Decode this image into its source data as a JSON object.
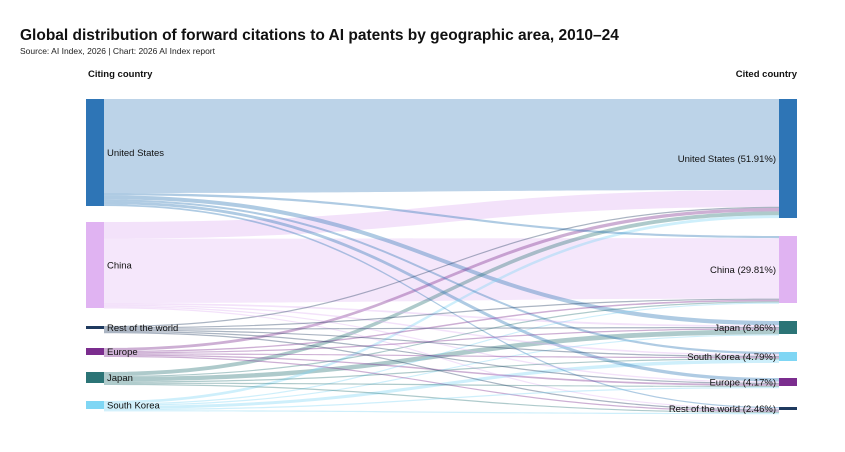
{
  "title": "Global distribution of forward citations to AI patents by geographic area, 2010–24",
  "source": "Source: AI Index, 2026 | Chart: 2026 AI Index report",
  "chart_data": {
    "type": "sankey",
    "left_header": "Citing country",
    "right_header": "Cited country",
    "colors": {
      "United States": "#2e75b6",
      "China": "#e0b3f2",
      "Rest of the world": "#1f3a5f",
      "Europe": "#7b2d8e",
      "Japan": "#2b7476",
      "South Korea": "#7fd6f4"
    },
    "sources": [
      {
        "name": "United States",
        "label": "United States",
        "share": 37.0
      },
      {
        "name": "China",
        "label": "China",
        "share": 31.0
      },
      {
        "name": "Rest of the world",
        "label": "Rest of the world",
        "share": 1.0
      },
      {
        "name": "Europe",
        "label": "Europe",
        "share": 3.0
      },
      {
        "name": "Japan",
        "label": "Japan",
        "share": 4.0
      },
      {
        "name": "South Korea",
        "label": "South Korea",
        "share": 3.0
      }
    ],
    "targets": [
      {
        "name": "United States",
        "label": "United States (51.91%)",
        "share": 51.91
      },
      {
        "name": "China",
        "label": "China (29.81%)",
        "share": 29.81
      },
      {
        "name": "Japan",
        "label": "Japan (6.86%)",
        "share": 6.86
      },
      {
        "name": "South Korea",
        "label": "South Korea (4.79%)",
        "share": 4.79
      },
      {
        "name": "Europe",
        "label": "Europe (4.17%)",
        "share": 4.17
      },
      {
        "name": "Rest of the world",
        "label": "Rest of the world (2.46%)",
        "share": 2.46
      }
    ],
    "flows": [
      {
        "from": "United States",
        "to": "United States",
        "value": 32.5
      },
      {
        "from": "United States",
        "to": "China",
        "value": 0.8
      },
      {
        "from": "United States",
        "to": "Japan",
        "value": 1.4
      },
      {
        "from": "United States",
        "to": "South Korea",
        "value": 0.7
      },
      {
        "from": "United States",
        "to": "Europe",
        "value": 1.0
      },
      {
        "from": "United States",
        "to": "Rest of the world",
        "value": 0.6
      },
      {
        "from": "China",
        "to": "United States",
        "value": 6.0
      },
      {
        "from": "China",
        "to": "China",
        "value": 23.2
      },
      {
        "from": "China",
        "to": "Japan",
        "value": 0.6
      },
      {
        "from": "China",
        "to": "South Korea",
        "value": 0.5
      },
      {
        "from": "China",
        "to": "Europe",
        "value": 0.4
      },
      {
        "from": "China",
        "to": "Rest of the world",
        "value": 0.3
      },
      {
        "from": "Rest of the world",
        "to": "United States",
        "value": 0.4
      },
      {
        "from": "Rest of the world",
        "to": "China",
        "value": 0.3
      },
      {
        "from": "Rest of the world",
        "to": "Japan",
        "value": 0.1
      },
      {
        "from": "Rest of the world",
        "to": "South Korea",
        "value": 0.1
      },
      {
        "from": "Rest of the world",
        "to": "Europe",
        "value": 0.1
      },
      {
        "from": "Rest of the world",
        "to": "Rest of the world",
        "value": 0.1
      },
      {
        "from": "Europe",
        "to": "United States",
        "value": 1.2
      },
      {
        "from": "Europe",
        "to": "China",
        "value": 0.6
      },
      {
        "from": "Europe",
        "to": "Japan",
        "value": 0.3
      },
      {
        "from": "Europe",
        "to": "South Korea",
        "value": 0.2
      },
      {
        "from": "Europe",
        "to": "Europe",
        "value": 0.5
      },
      {
        "from": "Europe",
        "to": "Rest of the world",
        "value": 0.2
      },
      {
        "from": "Japan",
        "to": "United States",
        "value": 1.4
      },
      {
        "from": "Japan",
        "to": "China",
        "value": 0.4
      },
      {
        "from": "Japan",
        "to": "Japan",
        "value": 1.6
      },
      {
        "from": "Japan",
        "to": "South Korea",
        "value": 0.2
      },
      {
        "from": "Japan",
        "to": "Europe",
        "value": 0.2
      },
      {
        "from": "Japan",
        "to": "Rest of the world",
        "value": 0.2
      },
      {
        "from": "South Korea",
        "to": "United States",
        "value": 1.0
      },
      {
        "from": "South Korea",
        "to": "China",
        "value": 0.4
      },
      {
        "from": "South Korea",
        "to": "Japan",
        "value": 0.3
      },
      {
        "from": "South Korea",
        "to": "South Korea",
        "value": 1.1
      },
      {
        "from": "South Korea",
        "to": "Europe",
        "value": 0.1
      },
      {
        "from": "South Korea",
        "to": "Rest of the world",
        "value": 0.1
      }
    ]
  }
}
